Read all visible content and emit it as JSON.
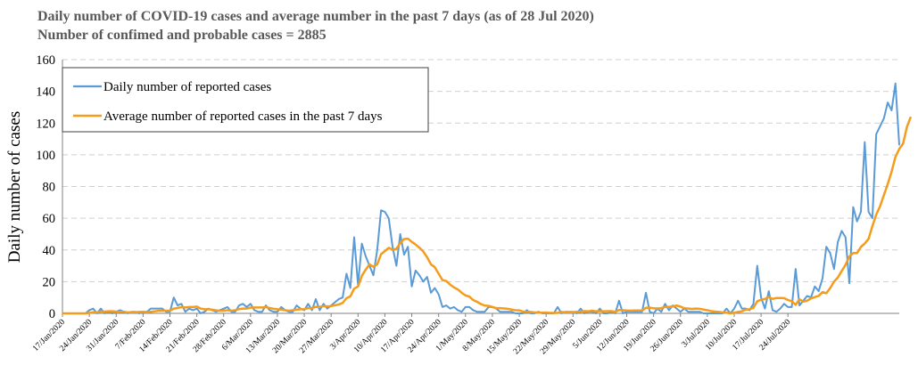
{
  "title_line1": "Daily number of COVID-19 cases and average number in the past 7 days (as of 28 Jul 2020)",
  "title_line2": "Number of confimed and probable cases = 2885",
  "chart_data": {
    "type": "line",
    "title": "Daily number of COVID-19 cases and average number in the past 7 days (as of 28 Jul 2020)",
    "subtitle": "Number of confimed and probable cases = 2885",
    "ylabel": "Daily  number of cases",
    "xlabel": "",
    "ylim": [
      0,
      160
    ],
    "yticks": [
      0,
      20,
      40,
      60,
      80,
      100,
      120,
      140,
      160
    ],
    "grid": "horizontal dashed",
    "legend_position": "top-left",
    "x_start": "17/Jan/2020",
    "x_end": "28/Jul/2020",
    "xtick_labels": [
      "17/Jan/2020",
      "24/Jan/2020",
      "31/Jan/2020",
      "7/Feb/2020",
      "14/Feb/2020",
      "21/Feb/2020",
      "28/Feb/2020",
      "6/Mar/2020",
      "13/Mar/2020",
      "20/Mar/2020",
      "27/Mar/2020",
      "3/Apr/2020",
      "10/Apr/2020",
      "17/Apr/2020",
      "24/Apr/2020",
      "1/May/2020",
      "8/May/2020",
      "15/May/2020",
      "22/May/2020",
      "29/May/2020",
      "5/Jun/2020",
      "12/Jun/2020",
      "19/Jun/2020",
      "26/Jun/2020",
      "3/Jul/2020",
      "10/Jul/2020",
      "17/Jul/2020",
      "24/Jul/2020"
    ],
    "series": [
      {
        "name": "Daily number of reported cases",
        "color": "#5b9bd5",
        "values": [
          0,
          0,
          0,
          0,
          0,
          0,
          0,
          2,
          3,
          0,
          3,
          0,
          1,
          0,
          1,
          2,
          1,
          0,
          1,
          1,
          0,
          1,
          1,
          3,
          3,
          3,
          3,
          1,
          1,
          10,
          5,
          6,
          1,
          3,
          2,
          3,
          0,
          1,
          3,
          2,
          1,
          2,
          3,
          4,
          1,
          1,
          5,
          6,
          4,
          6,
          2,
          1,
          1,
          5,
          2,
          1,
          1,
          4,
          2,
          1,
          1,
          5,
          3,
          2,
          6,
          2,
          9,
          2,
          6,
          3,
          5,
          7,
          9,
          10,
          25,
          16,
          48,
          18,
          44,
          36,
          30,
          24,
          40,
          65,
          64,
          60,
          42,
          30,
          50,
          37,
          42,
          17,
          27,
          24,
          20,
          23,
          13,
          16,
          12,
          4,
          5,
          3,
          4,
          2,
          1,
          4,
          4,
          2,
          1,
          1,
          1,
          4,
          4,
          3,
          1,
          1,
          1,
          1,
          0,
          0,
          0,
          2,
          0,
          0,
          1,
          0,
          0,
          0,
          0,
          4,
          0,
          1,
          1,
          1,
          0,
          3,
          0,
          1,
          1,
          0,
          3,
          0,
          0,
          1,
          0,
          8,
          0,
          1,
          1,
          1,
          1,
          1,
          13,
          1,
          0,
          3,
          1,
          6,
          2,
          5,
          3,
          1,
          3,
          1,
          1,
          1,
          1,
          0,
          0,
          0,
          0,
          0,
          0,
          3,
          0,
          3,
          8,
          3,
          3,
          2,
          6,
          30,
          10,
          3,
          14,
          2,
          1,
          3,
          6,
          4,
          4,
          28,
          5,
          8,
          11,
          10,
          17,
          14,
          22,
          42,
          38,
          28,
          45,
          52,
          48,
          19,
          67,
          58,
          64,
          108,
          64,
          60,
          113,
          118,
          123,
          133,
          128,
          145,
          106
        ]
      },
      {
        "name": "Average number of reported cases in the past 7 days",
        "color": "#f59c1a",
        "values": [
          0,
          0,
          0,
          0,
          0,
          0,
          0,
          0.3,
          0.7,
          0.7,
          1.1,
          1.1,
          1.3,
          1.3,
          1.1,
          1.0,
          1.0,
          0.6,
          0.7,
          0.7,
          0.9,
          0.9,
          0.7,
          1.0,
          1.3,
          1.6,
          1.7,
          1.7,
          1.7,
          3.0,
          3.4,
          3.9,
          3.7,
          4.0,
          4.0,
          4.3,
          3.0,
          2.6,
          2.6,
          2.3,
          1.9,
          1.6,
          1.7,
          2.0,
          1.7,
          2.0,
          2.7,
          3.0,
          3.0,
          3.6,
          3.7,
          3.7,
          3.7,
          3.9,
          3.4,
          2.9,
          2.6,
          2.4,
          2.0,
          1.7,
          2.0,
          2.3,
          2.6,
          2.7,
          3.3,
          3.3,
          4.1,
          4.1,
          4.6,
          4.4,
          4.6,
          5.1,
          5.6,
          6.6,
          9.6,
          10.7,
          15.6,
          16.9,
          23.7,
          27.6,
          30.9,
          29.4,
          30.9,
          37.3,
          39.3,
          41.3,
          40.1,
          40.7,
          44.3,
          46.9,
          47.1,
          45.1,
          43.4,
          41.4,
          39.0,
          35.4,
          30.9,
          29.1,
          25.0,
          21.0,
          20.4,
          18.1,
          16.4,
          15.1,
          13.0,
          11.3,
          10.6,
          8.4,
          7.3,
          5.9,
          4.9,
          4.7,
          4.0,
          3.3,
          3.3,
          3.1,
          2.9,
          2.4,
          2.0,
          1.9,
          1.1,
          1.0,
          0.9,
          0.6,
          0.4,
          0.4,
          0.5,
          0.3,
          0.3,
          0.3,
          0.9,
          0.6,
          0.7,
          0.7,
          1.0,
          1.0,
          1.4,
          1.3,
          1.7,
          1.3,
          1.3,
          1.3,
          1.4,
          1.4,
          0.9,
          2.1,
          2.0,
          1.8,
          1.7,
          1.8,
          1.8,
          1.8,
          3.5,
          3.6,
          3.2,
          3.1,
          3.3,
          4.1,
          4.1,
          4.4,
          4.9,
          4.3,
          3.2,
          3.0,
          2.8,
          3.0,
          2.9,
          2.4,
          2.0,
          1.4,
          1.1,
          0.9,
          0.6,
          0.4,
          0.0,
          0.4,
          0.9,
          1.3,
          2.4,
          2.6,
          3.5,
          7.6,
          8.6,
          9.1,
          10.4,
          9.1,
          9.7,
          9.7,
          9.6,
          8.4,
          7.7,
          5.4,
          8.9,
          7.4,
          8.0,
          9.4,
          10.3,
          11.0,
          13.4,
          12.7,
          15.9,
          20.0,
          22.6,
          26.7,
          30.6,
          35.9,
          38.0,
          38.0,
          41.9,
          44.0,
          47.0,
          55.0,
          62.3,
          67.6,
          74.6,
          81.6,
          89.3,
          98.6,
          103.7,
          107.1,
          117.6,
          124.0
        ]
      }
    ]
  }
}
